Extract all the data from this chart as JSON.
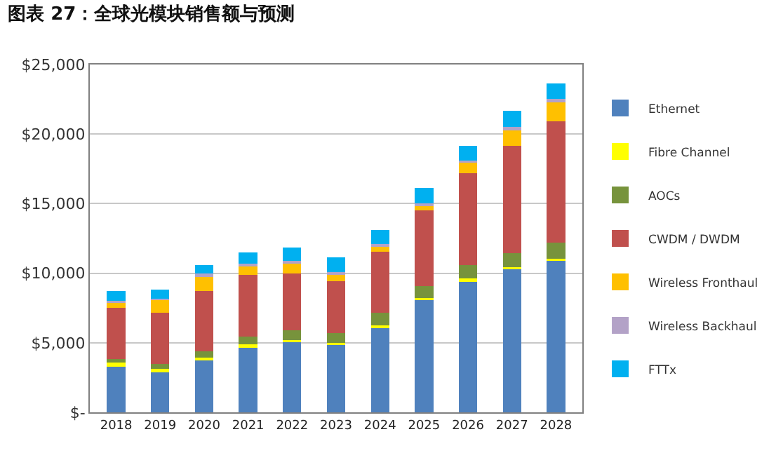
{
  "chart_data": {
    "type": "bar",
    "title": "图表 27：全球光模块销售额与预测",
    "stacked": true,
    "categories": [
      "2018",
      "2019",
      "2020",
      "2021",
      "2022",
      "2023",
      "2024",
      "2025",
      "2026",
      "2027",
      "2028"
    ],
    "series": [
      {
        "name": "Ethernet",
        "color": "#4f81bd",
        "values": [
          3300,
          2850,
          3800,
          4700,
          5050,
          4900,
          6050,
          8100,
          9450,
          10300,
          10950
        ]
      },
      {
        "name": "Fibre Channel",
        "color": "#ffff00",
        "values": [
          300,
          300,
          150,
          200,
          150,
          100,
          200,
          100,
          200,
          150,
          100
        ]
      },
      {
        "name": "AOCs",
        "color": "#77933c",
        "values": [
          250,
          350,
          450,
          550,
          700,
          700,
          900,
          850,
          950,
          1000,
          1150
        ]
      },
      {
        "name": "CWDM / DWDM",
        "color": "#c0504d",
        "values": [
          3650,
          3650,
          4300,
          4450,
          4100,
          3750,
          4400,
          5450,
          6600,
          7700,
          8700
        ]
      },
      {
        "name": "Wireless Fronthaul",
        "color": "#ffc000",
        "values": [
          400,
          950,
          1050,
          600,
          700,
          500,
          400,
          350,
          750,
          1150,
          1400
        ]
      },
      {
        "name": "Wireless Backhaul",
        "color": "#b3a2c7",
        "values": [
          100,
          50,
          250,
          200,
          200,
          150,
          150,
          150,
          150,
          200,
          250
        ]
      },
      {
        "name": "FTTx",
        "color": "#00b0f0",
        "values": [
          700,
          650,
          600,
          800,
          950,
          1050,
          1000,
          1150,
          1050,
          1150,
          1100
        ]
      }
    ],
    "ylim": [
      0,
      25000
    ],
    "yticks": [
      {
        "value": 0,
        "label": "$-"
      },
      {
        "value": 5000,
        "label": "$5,000"
      },
      {
        "value": 10000,
        "label": "$10,000"
      },
      {
        "value": 15000,
        "label": "$15,000"
      },
      {
        "value": 20000,
        "label": "$20,000"
      },
      {
        "value": 25000,
        "label": "$25,000"
      }
    ],
    "grid": "y",
    "legend": "right"
  }
}
